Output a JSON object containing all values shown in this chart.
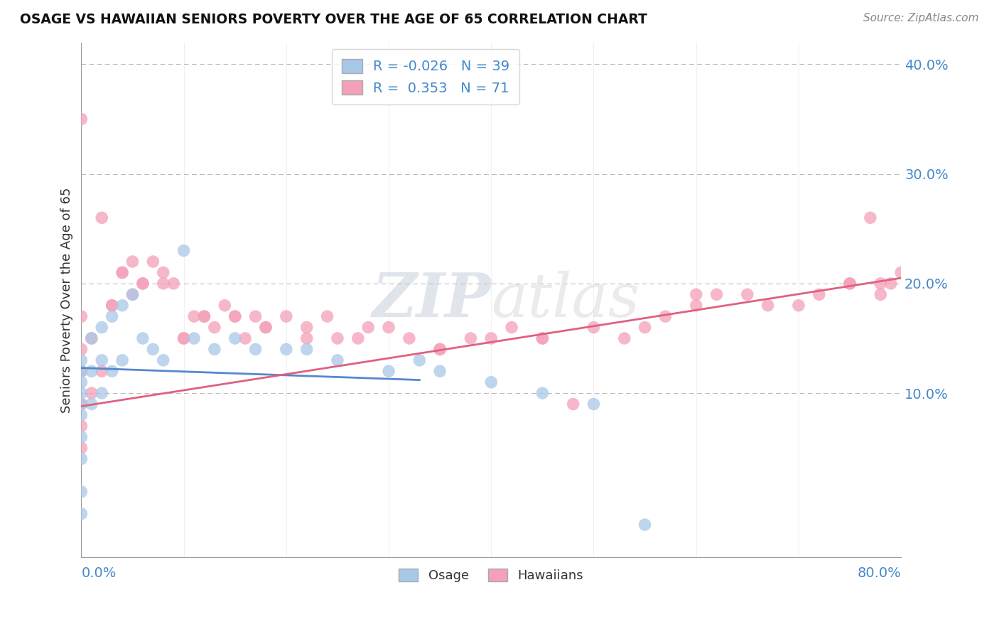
{
  "title": "OSAGE VS HAWAIIAN SENIORS POVERTY OVER THE AGE OF 65 CORRELATION CHART",
  "source": "Source: ZipAtlas.com",
  "ylabel": "Seniors Poverty Over the Age of 65",
  "xlim": [
    0.0,
    0.8
  ],
  "ylim": [
    -0.05,
    0.42
  ],
  "watermark": "ZIPatlas",
  "osage_color": "#a8c8e8",
  "hawaiian_color": "#f4a0b8",
  "osage_line_color": "#5588cc",
  "hawaiian_line_color": "#e06080",
  "grid_color": "#bbbbbb",
  "ytick_color": "#4488cc",
  "background_color": "#ffffff",
  "osage_x": [
    0.0,
    0.0,
    0.0,
    0.0,
    0.0,
    0.0,
    0.0,
    0.0,
    0.0,
    0.0,
    0.01,
    0.01,
    0.01,
    0.02,
    0.02,
    0.02,
    0.03,
    0.03,
    0.04,
    0.04,
    0.05,
    0.06,
    0.07,
    0.08,
    0.1,
    0.11,
    0.13,
    0.15,
    0.17,
    0.2,
    0.22,
    0.25,
    0.3,
    0.33,
    0.35,
    0.4,
    0.45,
    0.5,
    0.55
  ],
  "osage_y": [
    0.13,
    0.12,
    0.11,
    0.1,
    0.09,
    0.08,
    0.06,
    0.04,
    0.01,
    -0.01,
    0.15,
    0.12,
    0.09,
    0.16,
    0.13,
    0.1,
    0.17,
    0.12,
    0.18,
    0.13,
    0.19,
    0.15,
    0.14,
    0.13,
    0.23,
    0.15,
    0.14,
    0.15,
    0.14,
    0.14,
    0.14,
    0.13,
    0.12,
    0.13,
    0.12,
    0.11,
    0.1,
    0.09,
    -0.02
  ],
  "hawaiian_x": [
    0.02,
    0.03,
    0.04,
    0.05,
    0.06,
    0.07,
    0.08,
    0.09,
    0.1,
    0.11,
    0.12,
    0.13,
    0.14,
    0.15,
    0.16,
    0.17,
    0.18,
    0.2,
    0.22,
    0.24,
    0.25,
    0.27,
    0.3,
    0.32,
    0.35,
    0.38,
    0.4,
    0.42,
    0.45,
    0.48,
    0.5,
    0.53,
    0.55,
    0.57,
    0.6,
    0.62,
    0.65,
    0.67,
    0.7,
    0.72,
    0.75,
    0.77,
    0.78,
    0.79,
    0.8,
    0.0,
    0.0,
    0.0,
    0.0,
    0.0,
    0.0,
    0.0,
    0.01,
    0.01,
    0.02,
    0.03,
    0.04,
    0.05,
    0.06,
    0.08,
    0.1,
    0.12,
    0.15,
    0.18,
    0.22,
    0.28,
    0.35,
    0.45,
    0.6,
    0.75,
    0.78
  ],
  "hawaiian_y": [
    0.26,
    0.18,
    0.21,
    0.22,
    0.2,
    0.22,
    0.21,
    0.2,
    0.15,
    0.17,
    0.17,
    0.16,
    0.18,
    0.17,
    0.15,
    0.17,
    0.16,
    0.17,
    0.16,
    0.17,
    0.15,
    0.15,
    0.16,
    0.15,
    0.14,
    0.15,
    0.15,
    0.16,
    0.15,
    0.09,
    0.16,
    0.15,
    0.16,
    0.17,
    0.18,
    0.19,
    0.19,
    0.18,
    0.18,
    0.19,
    0.2,
    0.26,
    0.2,
    0.2,
    0.21,
    0.35,
    0.17,
    0.14,
    0.12,
    0.09,
    0.07,
    0.05,
    0.15,
    0.1,
    0.12,
    0.18,
    0.21,
    0.19,
    0.2,
    0.2,
    0.15,
    0.17,
    0.17,
    0.16,
    0.15,
    0.16,
    0.14,
    0.15,
    0.19,
    0.2,
    0.19
  ]
}
